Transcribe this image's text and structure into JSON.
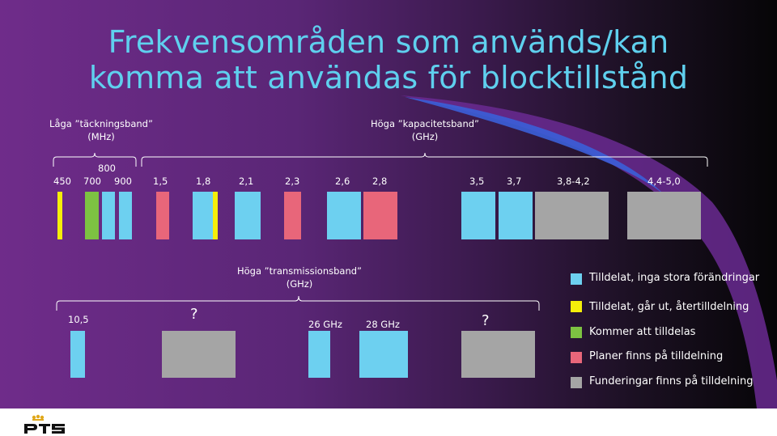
{
  "title_line1": "Frekvensområden som används/kan",
  "title_line2": "komma att användas för blocktillstånd",
  "groups": {
    "low": {
      "line1": "Låga ”täckningsband”",
      "line2": "(MHz)"
    },
    "high_capacity": {
      "line1": "Höga ”kapacitetsband”",
      "line2": "(GHz)"
    },
    "high_transmission": {
      "line1": "Höga ”transmissionsband”",
      "line2": "(GHz)"
    }
  },
  "labels": {
    "l450": "450",
    "l800": "800",
    "l700": "700",
    "l900": "900",
    "l15": "1,5",
    "l18": "1,8",
    "l21": "2,1",
    "l23": "2,3",
    "l26": "2,6",
    "l28": "2,8",
    "l35": "3,5",
    "l37": "3,7",
    "l3842": "3,8-4,2",
    "l4450": "4,4-5,0",
    "l105": "10,5",
    "q1": "?",
    "l26ghz": "26 GHz",
    "l28ghz": "28 GHz",
    "q2": "?"
  },
  "legend": [
    {
      "text": "Tilldelat, inga stora förändringar",
      "color": "#6dd0f0"
    },
    {
      "text": "Tilldelat, går ut, återtilldelning",
      "color": "#f5ee0a"
    },
    {
      "text": "Kommer att tilldelas",
      "color": "#7dc242"
    },
    {
      "text": "Planer finns på tilldelning",
      "color": "#e8667a"
    },
    {
      "text": "Funderingar finns på tilldelning",
      "color": "#a5a5a5"
    }
  ],
  "colors": {
    "title": "#5fd0ee",
    "assigned": "#6dd0f0",
    "expiring": "#f5ee0a",
    "upcoming": "#7dc242",
    "planned": "#e8667a",
    "considered": "#a5a5a5"
  },
  "logo_text": "PTS"
}
